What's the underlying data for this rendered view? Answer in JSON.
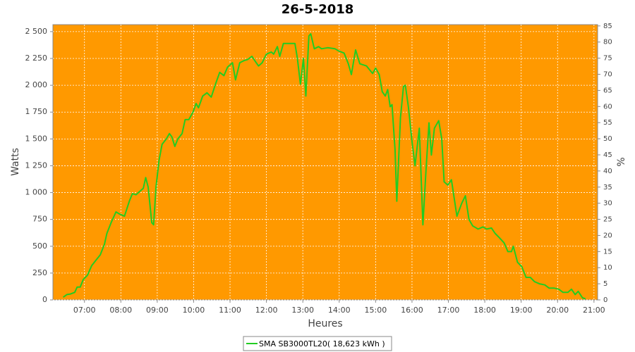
{
  "chart_data": {
    "type": "line",
    "title": "26-5-2018",
    "x_label": "Heures",
    "y_label": "Watts",
    "y2_label": "%",
    "xlim": [
      "06:08",
      "21:06"
    ],
    "xticks": [
      "07:00",
      "08:00",
      "09:00",
      "10:00",
      "11:00",
      "12:00",
      "13:00",
      "14:00",
      "15:00",
      "16:00",
      "17:00",
      "18:00",
      "19:00",
      "20:00",
      "21:00"
    ],
    "ylim": [
      0,
      2565
    ],
    "yticks": [
      0,
      250,
      500,
      750,
      {
        "value": 1000,
        "label": "1 000"
      },
      {
        "value": 1250,
        "label": "1 250"
      },
      {
        "value": 1500,
        "label": "1 500"
      },
      {
        "value": 1750,
        "label": "1 750"
      },
      {
        "value": 2000,
        "label": "2 000"
      },
      {
        "value": 2250,
        "label": "2 250"
      },
      {
        "value": 2500,
        "label": "2 500"
      }
    ],
    "y2lim": [
      0,
      85.4
    ],
    "y2ticks": [
      0,
      5,
      10,
      15,
      20,
      25,
      30,
      35,
      40,
      45,
      50,
      55,
      60,
      65,
      70,
      75,
      80,
      85
    ],
    "grid": true,
    "plot_background": "#ff9900",
    "legend": "bottom",
    "x": [
      "06:25",
      "06:31",
      "06:37",
      "06:44",
      "06:48",
      "06:53",
      "06:58",
      "07:05",
      "07:12",
      "07:19",
      "07:26",
      "07:33",
      "07:37",
      "07:44",
      "07:52",
      "07:58",
      "08:06",
      "08:14",
      "08:19",
      "08:25",
      "08:31",
      "08:37",
      "08:41",
      "08:45",
      "08:51",
      "08:54",
      "08:58",
      "09:03",
      "09:08",
      "09:15",
      "09:20",
      "09:24",
      "09:29",
      "09:34",
      "09:41",
      "09:46",
      "09:52",
      "09:59",
      "10:04",
      "10:08",
      "10:15",
      "10:22",
      "10:29",
      "10:36",
      "10:43",
      "10:50",
      "10:56",
      "11:04",
      "11:09",
      "11:16",
      "11:23",
      "11:29",
      "11:36",
      "11:42",
      "11:47",
      "11:53",
      "12:00",
      "12:08",
      "12:12",
      "12:18",
      "12:22",
      "12:28",
      "12:47",
      "12:51",
      "12:56",
      "13:01",
      "13:05",
      "13:10",
      "13:13",
      "13:19",
      "13:26",
      "13:31",
      "13:41",
      "13:53",
      "13:59",
      "14:08",
      "14:15",
      "14:20",
      "14:27",
      "14:34",
      "14:45",
      "14:55",
      "15:00",
      "15:06",
      "15:11",
      "15:16",
      "15:20",
      "15:24",
      "15:27",
      "15:32",
      "15:35",
      "15:41",
      "15:46",
      "15:49",
      "15:54",
      "16:00",
      "16:05",
      "16:12",
      "16:18",
      "16:23",
      "16:28",
      "16:32",
      "16:37",
      "16:44",
      "16:49",
      "16:53",
      "16:59",
      "17:05",
      "17:14",
      "17:22",
      "17:28",
      "17:34",
      "17:40",
      "17:49",
      "17:57",
      "18:03",
      "18:11",
      "18:17",
      "18:24",
      "18:32",
      "18:38",
      "18:44",
      "18:47",
      "18:54",
      "19:01",
      "19:08",
      "19:15",
      "19:22",
      "19:30",
      "19:39",
      "19:46",
      "19:54",
      "20:02",
      "20:09",
      "20:17",
      "20:23",
      "20:29",
      "20:34",
      "20:41",
      "20:46"
    ],
    "series": [
      {
        "name": "SMA SB3000TL20( 18,623 kWh )",
        "color": "#22cc22",
        "values": [
          25,
          50,
          55,
          70,
          120,
          120,
          190,
          230,
          320,
          370,
          420,
          520,
          620,
          720,
          820,
          800,
          780,
          920,
          990,
          980,
          1010,
          1040,
          1140,
          1050,
          720,
          700,
          1050,
          1300,
          1450,
          1500,
          1550,
          1520,
          1430,
          1500,
          1550,
          1680,
          1680,
          1750,
          1830,
          1790,
          1900,
          1930,
          1890,
          2010,
          2120,
          2090,
          2170,
          2210,
          2050,
          2210,
          2230,
          2240,
          2270,
          2220,
          2180,
          2210,
          2290,
          2310,
          2290,
          2360,
          2270,
          2390,
          2390,
          2250,
          2010,
          2250,
          1900,
          2460,
          2480,
          2340,
          2360,
          2340,
          2350,
          2340,
          2320,
          2300,
          2200,
          2100,
          2330,
          2200,
          2180,
          2110,
          2160,
          2100,
          1940,
          1900,
          1960,
          1800,
          1820,
          1400,
          920,
          1700,
          1990,
          2000,
          1800,
          1480,
          1250,
          1600,
          700,
          1200,
          1650,
          1350,
          1600,
          1670,
          1500,
          1100,
          1070,
          1120,
          780,
          900,
          970,
          750,
          690,
          660,
          680,
          660,
          670,
          620,
          580,
          530,
          450,
          450,
          500,
          350,
          310,
          210,
          210,
          170,
          150,
          140,
          110,
          110,
          100,
          70,
          70,
          100,
          50,
          80,
          20,
          10
        ]
      }
    ]
  }
}
